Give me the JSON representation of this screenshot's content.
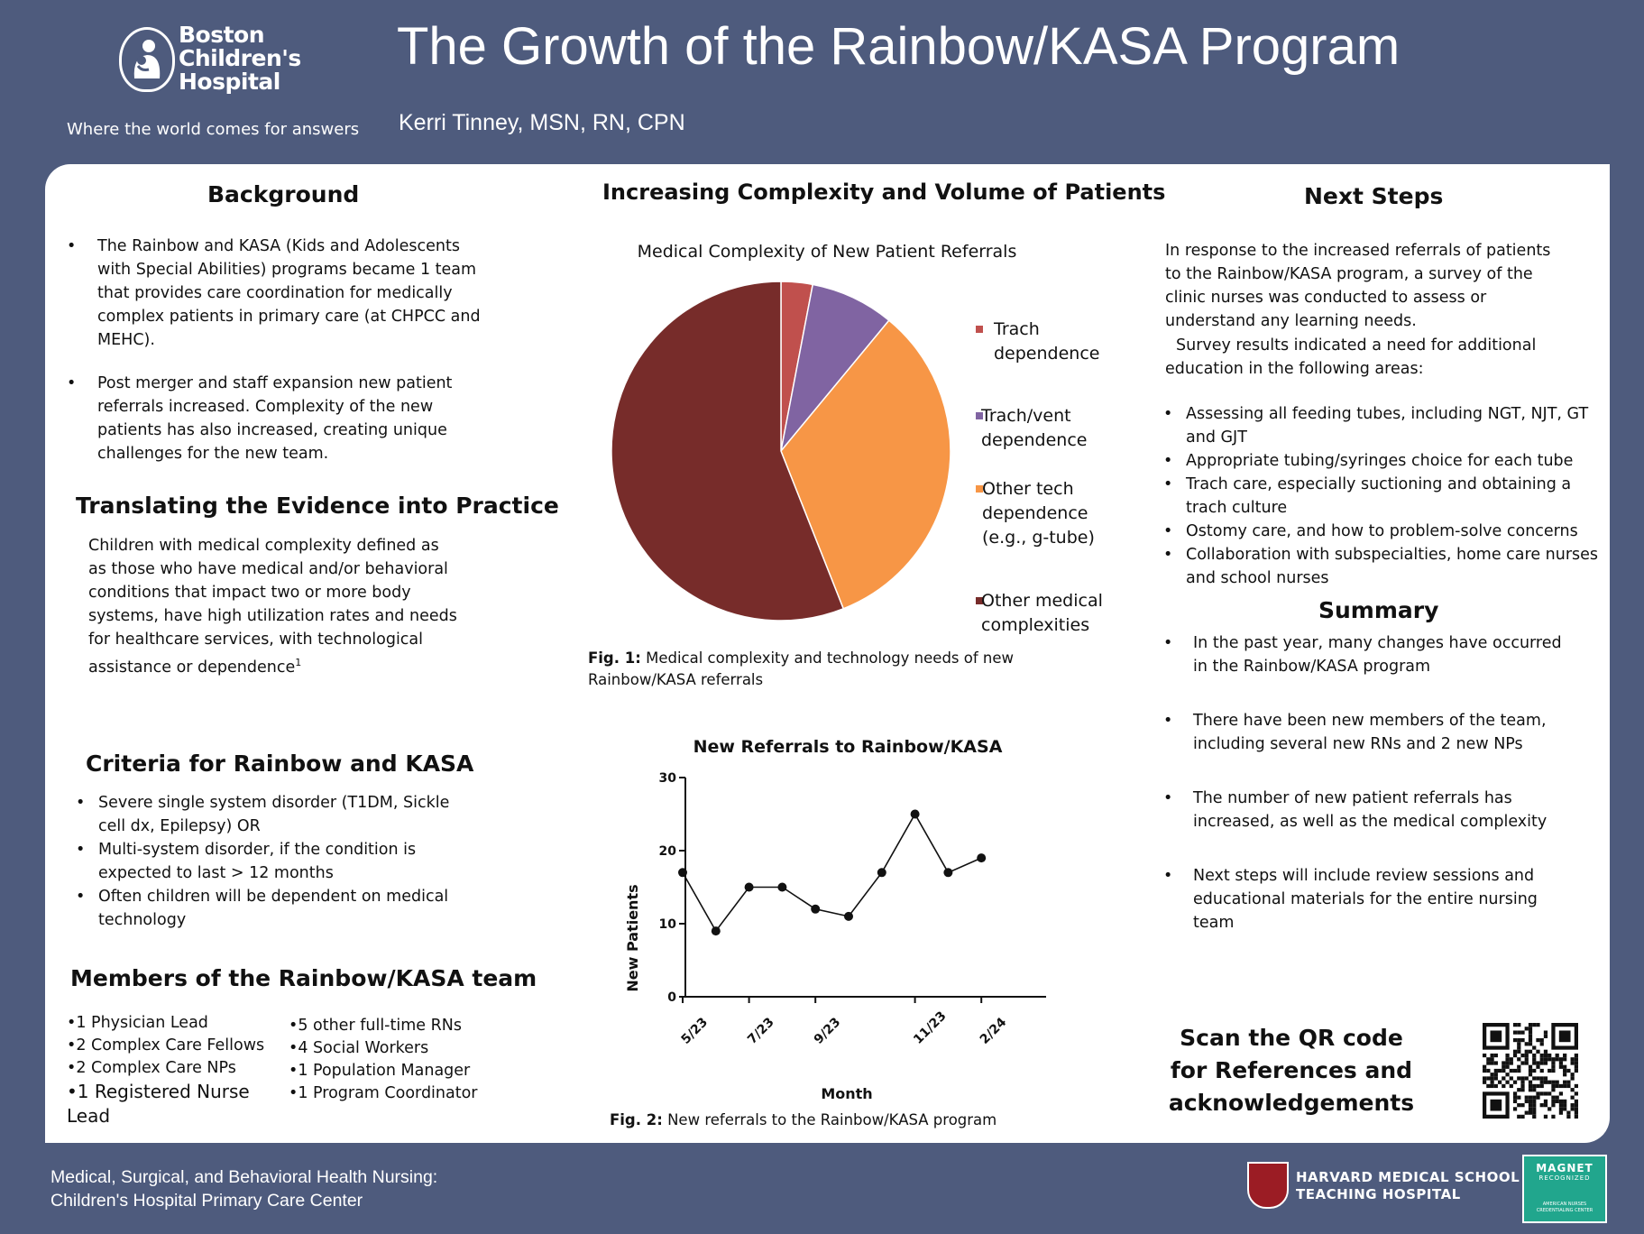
{
  "header": {
    "logo_lines": [
      "Boston",
      "Children's",
      "Hospital"
    ],
    "tagline": "Where the world comes for answers",
    "title": "The Growth of the Rainbow/KASA Program",
    "author": "Kerri Tinney, MSN, RN, CPN"
  },
  "background": {
    "heading": "Background",
    "bullets": [
      "The Rainbow and KASA (Kids and Adolescents with Special Abilities) programs became 1 team that provides care coordination for medically complex patients in primary care (at CHPCC and MEHC).",
      "Post merger and staff expansion new patient referrals increased. Complexity of the new patients has also increased, creating unique challenges for the new team."
    ]
  },
  "translating": {
    "heading": "Translating the Evidence into Practice",
    "text": "Children with medical complexity defined as as those who have medical and/or behavioral conditions that impact two or more body systems, have high utilization rates and needs for healthcare services, with technological assistance or dependence",
    "superscript": "1"
  },
  "criteria": {
    "heading": "Criteria for Rainbow and KASA",
    "bullets": [
      "Severe single system disorder (T1DM, Sickle cell dx, Epilepsy) OR",
      "Multi-system disorder, if the condition is expected to last > 12 months",
      "Often  children will be dependent on medical technology"
    ]
  },
  "members": {
    "heading": "Members of the Rainbow/KASA team",
    "left": [
      "•1 Physician Lead",
      "•2 Complex Care Fellows",
      "•2 Complex Care NPs",
      "•1 Registered Nurse Lead"
    ],
    "right": [
      "•5 other full-time RNs",
      "•4 Social Workers",
      "•1 Population Manager",
      "•1 Program Coordinator"
    ]
  },
  "middle": {
    "heading": "Increasing Complexity and Volume of Patients",
    "fig1_label": "Fig. 1:",
    "fig1_caption": " Medical complexity and technology needs of new Rainbow/KASA referrals",
    "fig2_label": "Fig. 2:",
    "fig2_caption": " New referrals to the Rainbow/KASA program"
  },
  "chart_data": [
    {
      "type": "pie",
      "title": "Medical Complexity of New Patient Referrals",
      "labels": [
        "Trach dependence",
        "Trach/vent dependence",
        "Other tech dependence (e.g., g-tube)",
        "Other medical complexities"
      ],
      "values": [
        3,
        8,
        33,
        56
      ],
      "colors": [
        "#c0504d",
        "#8064a2",
        "#f79646",
        "#772c2a"
      ],
      "legend": "right"
    },
    {
      "type": "line",
      "title": "New Referrals to Rainbow/KASA",
      "xlabel": "Month",
      "ylabel": "New Patients",
      "x": [
        "5/23",
        "6/23",
        "7/23",
        "8/23",
        "9/23",
        "10/23",
        "11/23",
        "12/23",
        "1/24",
        "2/24"
      ],
      "tick_labels": [
        "5/23",
        "7/23",
        "9/23",
        "11/23",
        "2/24"
      ],
      "values": [
        17,
        9,
        15,
        15,
        12,
        11,
        17,
        25,
        17,
        19
      ],
      "ylim": [
        0,
        30
      ],
      "yticks": [
        0,
        10,
        20,
        30
      ]
    }
  ],
  "next_steps": {
    "heading": "Next Steps",
    "intro": "In response to the increased referrals of patients to the Rainbow/KASA program, a survey of the clinic nurses was conducted to assess or understand any learning needs.",
    "results": "Survey results indicated a need for additional education in the following areas:",
    "bullets": [
      "Assessing all feeding tubes, including NGT, NJT, GT and GJT",
      "Appropriate tubing/syringes choice for each tube",
      "Trach care, especially suctioning and obtaining a trach culture",
      "Ostomy care, and how to problem-solve concerns",
      "Collaboration with subspecialties, home care nurses and school nurses"
    ]
  },
  "summary": {
    "heading": "Summary",
    "bullets": [
      "In the past year, many changes have occurred in the Rainbow/KASA program",
      "There have been new members of the team, including several new RNs and 2 new NPs",
      "The number of new patient  referrals has increased, as well as the medical complexity",
      "Next steps will include review sessions and educational materials for the entire nursing team"
    ]
  },
  "qr": {
    "text": "Scan the QR code for References and acknowledgements"
  },
  "footer": {
    "line1": "Medical, Surgical, and Behavioral Health Nursing:",
    "line2": "Children's Hospital Primary Care Center",
    "hms1": "HARVARD MEDICAL SCHOOL",
    "hms2": "TEACHING HOSPITAL",
    "magnet1": "MAGNET",
    "magnet2": "RECOGNIZED",
    "magnet3": "AMERICAN NURSES CREDENTIALING CENTER"
  }
}
